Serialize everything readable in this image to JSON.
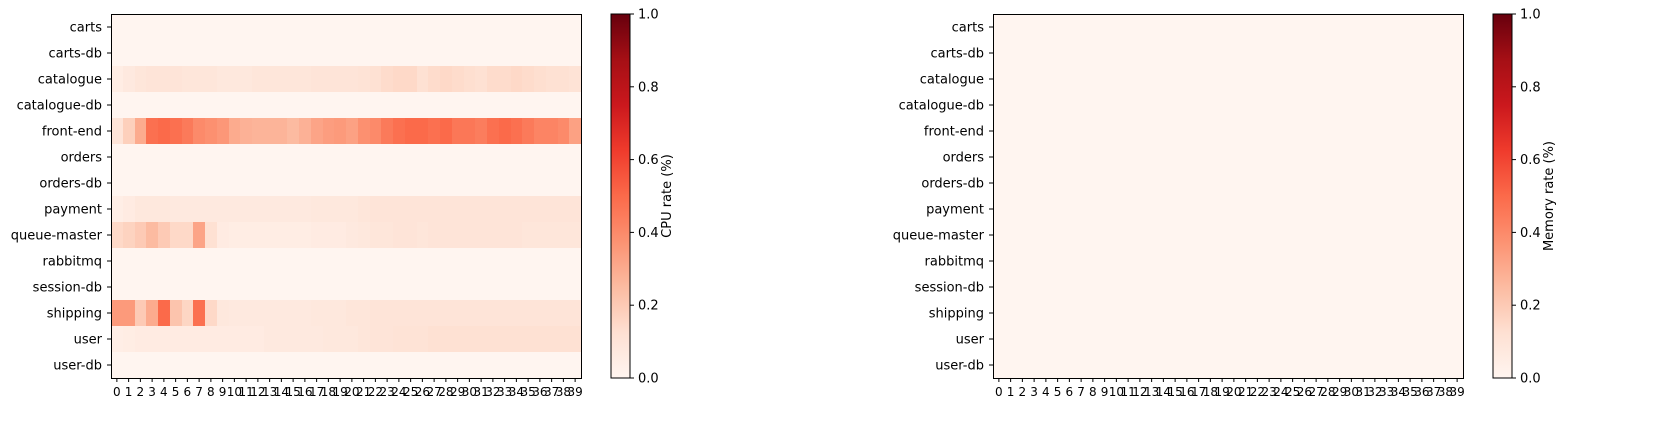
{
  "chart_data": [
    {
      "type": "heatmap",
      "title": "",
      "xlabel": "",
      "ylabel": "",
      "colorbar_label": "CPU rate (%)",
      "colormap": "Reds",
      "vmin": 0.0,
      "vmax": 1.0,
      "colorbar_ticks": [
        "0.0",
        "0.2",
        "0.4",
        "0.6",
        "0.8",
        "1.0"
      ],
      "x": [
        0,
        1,
        2,
        3,
        4,
        5,
        6,
        7,
        8,
        9,
        10,
        11,
        12,
        13,
        14,
        15,
        16,
        17,
        18,
        19,
        20,
        21,
        22,
        23,
        24,
        25,
        26,
        27,
        28,
        29,
        30,
        31,
        32,
        33,
        34,
        35,
        36,
        37,
        38,
        39
      ],
      "rows": [
        "carts",
        "carts-db",
        "catalogue",
        "catalogue-db",
        "front-end",
        "orders",
        "orders-db",
        "payment",
        "queue-master",
        "rabbitmq",
        "session-db",
        "shipping",
        "user",
        "user-db"
      ],
      "values": [
        [
          0,
          0,
          0,
          0,
          0,
          0,
          0,
          0,
          0,
          0,
          0,
          0,
          0,
          0,
          0,
          0,
          0,
          0,
          0,
          0,
          0,
          0,
          0,
          0,
          0,
          0,
          0,
          0,
          0,
          0,
          0,
          0,
          0,
          0,
          0,
          0,
          0,
          0,
          0,
          0
        ],
        [
          0,
          0,
          0,
          0,
          0,
          0,
          0,
          0,
          0,
          0,
          0,
          0,
          0,
          0,
          0,
          0,
          0,
          0,
          0,
          0,
          0,
          0,
          0,
          0,
          0,
          0,
          0,
          0,
          0,
          0,
          0,
          0,
          0,
          0,
          0,
          0,
          0,
          0,
          0,
          0
        ],
        [
          0.05,
          0.07,
          0.09,
          0.1,
          0.1,
          0.1,
          0.09,
          0.09,
          0.09,
          0.08,
          0.08,
          0.08,
          0.09,
          0.09,
          0.09,
          0.09,
          0.09,
          0.1,
          0.1,
          0.1,
          0.1,
          0.11,
          0.12,
          0.14,
          0.15,
          0.15,
          0.12,
          0.14,
          0.15,
          0.14,
          0.13,
          0.12,
          0.14,
          0.14,
          0.15,
          0.14,
          0.13,
          0.12,
          0.12,
          0.11
        ],
        [
          0,
          0,
          0,
          0,
          0,
          0,
          0,
          0,
          0,
          0,
          0,
          0,
          0,
          0,
          0,
          0,
          0,
          0,
          0,
          0,
          0,
          0,
          0,
          0,
          0,
          0,
          0,
          0,
          0,
          0,
          0,
          0,
          0,
          0,
          0,
          0,
          0,
          0,
          0,
          0
        ],
        [
          0.1,
          0.18,
          0.3,
          0.48,
          0.5,
          0.48,
          0.45,
          0.4,
          0.38,
          0.36,
          0.3,
          0.28,
          0.27,
          0.27,
          0.27,
          0.25,
          0.28,
          0.32,
          0.34,
          0.35,
          0.33,
          0.38,
          0.4,
          0.45,
          0.48,
          0.5,
          0.5,
          0.48,
          0.5,
          0.46,
          0.46,
          0.44,
          0.48,
          0.5,
          0.48,
          0.45,
          0.42,
          0.42,
          0.4,
          0.33
        ],
        [
          0,
          0,
          0,
          0,
          0,
          0,
          0,
          0,
          0,
          0,
          0,
          0,
          0,
          0,
          0,
          0,
          0,
          0,
          0,
          0,
          0,
          0,
          0,
          0,
          0,
          0,
          0,
          0,
          0,
          0,
          0,
          0,
          0,
          0,
          0,
          0,
          0,
          0,
          0,
          0
        ],
        [
          0,
          0,
          0,
          0,
          0,
          0,
          0,
          0,
          0,
          0,
          0,
          0,
          0,
          0,
          0,
          0,
          0,
          0,
          0,
          0,
          0,
          0,
          0,
          0,
          0,
          0,
          0,
          0,
          0,
          0,
          0,
          0,
          0,
          0,
          0,
          0,
          0,
          0,
          0,
          0
        ],
        [
          0.04,
          0.06,
          0.08,
          0.08,
          0.08,
          0.07,
          0.07,
          0.07,
          0.07,
          0.07,
          0.07,
          0.07,
          0.07,
          0.07,
          0.07,
          0.07,
          0.07,
          0.08,
          0.08,
          0.08,
          0.08,
          0.09,
          0.1,
          0.1,
          0.1,
          0.1,
          0.1,
          0.1,
          0.1,
          0.1,
          0.1,
          0.1,
          0.1,
          0.1,
          0.1,
          0.1,
          0.1,
          0.1,
          0.1,
          0.1
        ],
        [
          0.15,
          0.17,
          0.2,
          0.25,
          0.2,
          0.15,
          0.15,
          0.32,
          0.12,
          0.06,
          0.05,
          0.05,
          0.05,
          0.05,
          0.05,
          0.05,
          0.05,
          0.06,
          0.06,
          0.06,
          0.07,
          0.08,
          0.09,
          0.09,
          0.1,
          0.1,
          0.09,
          0.1,
          0.1,
          0.1,
          0.1,
          0.1,
          0.1,
          0.1,
          0.1,
          0.09,
          0.09,
          0.09,
          0.09,
          0.09
        ],
        [
          0,
          0,
          0,
          0,
          0,
          0,
          0,
          0,
          0,
          0,
          0,
          0,
          0,
          0,
          0,
          0,
          0,
          0,
          0,
          0,
          0,
          0,
          0,
          0,
          0,
          0,
          0,
          0,
          0,
          0,
          0,
          0,
          0,
          0,
          0,
          0,
          0,
          0,
          0,
          0
        ],
        [
          0,
          0,
          0,
          0,
          0,
          0,
          0,
          0,
          0,
          0,
          0,
          0,
          0,
          0,
          0,
          0,
          0,
          0,
          0,
          0,
          0,
          0,
          0,
          0,
          0,
          0,
          0,
          0,
          0,
          0,
          0,
          0,
          0,
          0,
          0,
          0,
          0,
          0,
          0,
          0
        ],
        [
          0.35,
          0.35,
          0.2,
          0.3,
          0.5,
          0.22,
          0.16,
          0.48,
          0.15,
          0.08,
          0.07,
          0.07,
          0.07,
          0.07,
          0.07,
          0.07,
          0.07,
          0.08,
          0.08,
          0.08,
          0.09,
          0.09,
          0.1,
          0.1,
          0.1,
          0.1,
          0.1,
          0.1,
          0.1,
          0.1,
          0.1,
          0.1,
          0.1,
          0.1,
          0.1,
          0.1,
          0.1,
          0.1,
          0.1,
          0.1
        ],
        [
          0.04,
          0.05,
          0.06,
          0.06,
          0.06,
          0.06,
          0.06,
          0.06,
          0.06,
          0.06,
          0.06,
          0.06,
          0.06,
          0.07,
          0.07,
          0.07,
          0.07,
          0.07,
          0.08,
          0.08,
          0.08,
          0.09,
          0.1,
          0.1,
          0.11,
          0.11,
          0.11,
          0.12,
          0.12,
          0.12,
          0.12,
          0.12,
          0.12,
          0.12,
          0.12,
          0.12,
          0.12,
          0.12,
          0.12,
          0.12
        ],
        [
          0,
          0,
          0,
          0,
          0,
          0,
          0,
          0,
          0,
          0,
          0,
          0,
          0,
          0,
          0,
          0,
          0,
          0,
          0,
          0,
          0,
          0,
          0,
          0,
          0,
          0,
          0,
          0,
          0,
          0,
          0,
          0,
          0,
          0,
          0,
          0,
          0,
          0,
          0,
          0
        ]
      ]
    },
    {
      "type": "heatmap",
      "title": "",
      "xlabel": "",
      "ylabel": "",
      "colorbar_label": "Memory rate (%)",
      "colormap": "Reds",
      "vmin": 0.0,
      "vmax": 1.0,
      "colorbar_ticks": [
        "0.0",
        "0.2",
        "0.4",
        "0.6",
        "0.8",
        "1.0"
      ],
      "x": [
        0,
        1,
        2,
        3,
        4,
        5,
        6,
        7,
        8,
        9,
        10,
        11,
        12,
        13,
        14,
        15,
        16,
        17,
        18,
        19,
        20,
        21,
        22,
        23,
        24,
        25,
        26,
        27,
        28,
        29,
        30,
        31,
        32,
        33,
        34,
        35,
        36,
        37,
        38,
        39
      ],
      "rows": [
        "carts",
        "carts-db",
        "catalogue",
        "catalogue-db",
        "front-end",
        "orders",
        "orders-db",
        "payment",
        "queue-master",
        "rabbitmq",
        "session-db",
        "shipping",
        "user",
        "user-db"
      ],
      "values": "all-zero"
    }
  ]
}
